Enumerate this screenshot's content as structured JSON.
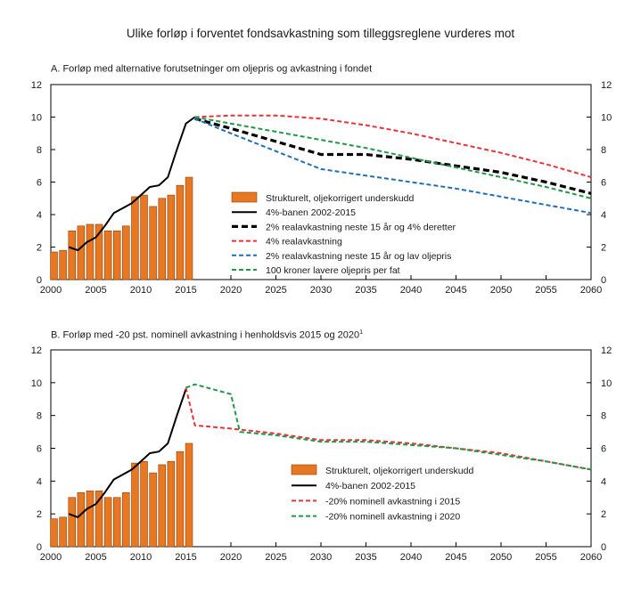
{
  "main_title": "Ulike forløp i forventet fondsavkastning som tilleggsreglene vurderes mot",
  "colors": {
    "bars": "#E87722",
    "bar_edge": "#8A3E0A",
    "black": "#000000",
    "red": "#E8333A",
    "blue": "#1F6FB8",
    "green": "#1E9A47"
  },
  "chart_data": [
    {
      "id": "panel_a",
      "type": "bar+line",
      "title": "A. Forløp med alternative forutsetninger om oljepris og avkastning i fondet",
      "title_sup": "",
      "xlim": [
        2000,
        2060
      ],
      "ylim": [
        0,
        12
      ],
      "x_ticks": [
        2000,
        2005,
        2010,
        2015,
        2020,
        2025,
        2030,
        2035,
        2040,
        2045,
        2050,
        2055,
        2060
      ],
      "y_ticks": [
        0,
        2,
        4,
        6,
        8,
        10,
        12
      ],
      "bars": {
        "name": "Strukturelt, oljekorrigert underskudd",
        "x": [
          2000,
          2001,
          2002,
          2003,
          2004,
          2005,
          2006,
          2007,
          2008,
          2009,
          2010,
          2011,
          2012,
          2013,
          2014,
          2015
        ],
        "values": [
          1.7,
          1.8,
          3.0,
          3.3,
          3.4,
          3.4,
          3.0,
          3.0,
          3.3,
          5.1,
          5.2,
          4.5,
          5.0,
          5.2,
          5.8,
          6.3
        ]
      },
      "series": [
        {
          "name": "4%-banen 2002-2015",
          "style": "solid",
          "color": "black",
          "x": [
            2002,
            2003,
            2004,
            2005,
            2006,
            2007,
            2008,
            2009,
            2010,
            2011,
            2012,
            2013,
            2014,
            2015,
            2016
          ],
          "values": [
            2.0,
            1.8,
            2.3,
            2.6,
            3.3,
            4.1,
            4.4,
            4.7,
            5.2,
            5.7,
            5.8,
            6.3,
            8.0,
            9.6,
            10.0
          ]
        },
        {
          "name": "2% realavkastning neste 15 år og 4% deretter",
          "style": "dash-thick",
          "color": "black",
          "x": [
            2016,
            2020,
            2025,
            2030,
            2035,
            2040,
            2045,
            2050,
            2055,
            2060
          ],
          "values": [
            9.9,
            9.3,
            8.5,
            7.7,
            7.7,
            7.4,
            7.0,
            6.6,
            6.0,
            5.3
          ]
        },
        {
          "name": "4% realavkastning",
          "style": "dash",
          "color": "red",
          "x": [
            2016,
            2020,
            2025,
            2030,
            2035,
            2040,
            2045,
            2050,
            2055,
            2060
          ],
          "values": [
            10.0,
            10.1,
            10.1,
            9.9,
            9.5,
            9.0,
            8.4,
            7.8,
            7.1,
            6.3
          ]
        },
        {
          "name": "2% realavkastning neste 15 år og lav oljepris",
          "style": "dash",
          "color": "blue",
          "x": [
            2016,
            2020,
            2025,
            2030,
            2035,
            2040,
            2045,
            2050,
            2055,
            2060
          ],
          "values": [
            9.9,
            9.0,
            7.9,
            6.8,
            6.4,
            6.0,
            5.6,
            5.1,
            4.6,
            4.1
          ]
        },
        {
          "name": "100 kroner lavere oljepris per fat",
          "style": "dash",
          "color": "green",
          "x": [
            2016,
            2020,
            2025,
            2030,
            2035,
            2040,
            2045,
            2050,
            2055,
            2060
          ],
          "values": [
            10.0,
            9.6,
            9.1,
            8.6,
            8.1,
            7.5,
            6.9,
            6.3,
            5.7,
            5.0
          ]
        }
      ],
      "legend": [
        {
          "kind": "bar",
          "label": "Strukturelt, oljekorrigert underskudd"
        },
        {
          "kind": "line",
          "color": "black",
          "style": "solid",
          "label": "4%-banen 2002-2015"
        },
        {
          "kind": "line",
          "color": "black",
          "style": "dash-thick",
          "label": "2% realavkastning neste 15 år og 4% deretter"
        },
        {
          "kind": "line",
          "color": "red",
          "style": "dash",
          "label": "4% realavkastning"
        },
        {
          "kind": "line",
          "color": "blue",
          "style": "dash",
          "label": "2% realavkastning neste 15 år og lav oljepris"
        },
        {
          "kind": "line",
          "color": "green",
          "style": "dash",
          "label": "100 kroner lavere oljepris per fat"
        }
      ]
    },
    {
      "id": "panel_b",
      "type": "bar+line",
      "title": "B. Forløp med -20 pst. nominell avkastning i henholdsvis 2015 og 2020",
      "title_sup": "1",
      "xlim": [
        2000,
        2060
      ],
      "ylim": [
        0,
        12
      ],
      "x_ticks": [
        2000,
        2005,
        2010,
        2015,
        2020,
        2025,
        2030,
        2035,
        2040,
        2045,
        2050,
        2055,
        2060
      ],
      "y_ticks": [
        0,
        2,
        4,
        6,
        8,
        10,
        12
      ],
      "bars": {
        "name": "Strukturelt, oljekorrigert underskudd",
        "x": [
          2000,
          2001,
          2002,
          2003,
          2004,
          2005,
          2006,
          2007,
          2008,
          2009,
          2010,
          2011,
          2012,
          2013,
          2014,
          2015
        ],
        "values": [
          1.7,
          1.8,
          3.0,
          3.3,
          3.4,
          3.4,
          3.0,
          3.0,
          3.3,
          5.1,
          5.2,
          4.5,
          5.0,
          5.2,
          5.8,
          6.3
        ]
      },
      "series": [
        {
          "name": "4%-banen 2002-2015",
          "style": "solid",
          "color": "black",
          "x": [
            2002,
            2003,
            2004,
            2005,
            2006,
            2007,
            2008,
            2009,
            2010,
            2011,
            2012,
            2013,
            2014,
            2015
          ],
          "values": [
            2.0,
            1.8,
            2.3,
            2.6,
            3.3,
            4.1,
            4.4,
            4.7,
            5.2,
            5.7,
            5.8,
            6.3,
            8.0,
            9.6
          ]
        },
        {
          "name": "-20% nominell avkastning i 2015",
          "style": "dash",
          "color": "red",
          "x": [
            2015,
            2016,
            2020,
            2025,
            2030,
            2035,
            2040,
            2045,
            2050,
            2055,
            2060
          ],
          "values": [
            9.7,
            7.4,
            7.2,
            6.9,
            6.5,
            6.5,
            6.3,
            6.0,
            5.7,
            5.2,
            4.7
          ]
        },
        {
          "name": "-20% nominell avkastning i 2020",
          "style": "dash",
          "color": "green",
          "x": [
            2015,
            2016,
            2020,
            2021,
            2025,
            2030,
            2035,
            2040,
            2045,
            2050,
            2055,
            2060
          ],
          "values": [
            9.7,
            9.9,
            9.3,
            7.0,
            6.8,
            6.4,
            6.4,
            6.2,
            6.0,
            5.6,
            5.2,
            4.7
          ]
        }
      ],
      "legend": [
        {
          "kind": "bar",
          "label": "Strukturelt, oljekorrigert underskudd"
        },
        {
          "kind": "line",
          "color": "black",
          "style": "solid",
          "label": "4%-banen 2002-2015"
        },
        {
          "kind": "line",
          "color": "red",
          "style": "dash",
          "label": "-20% nominell avkastning i 2015"
        },
        {
          "kind": "line",
          "color": "green",
          "style": "dash",
          "label": "-20% nominell avkastning i 2020"
        }
      ]
    }
  ]
}
